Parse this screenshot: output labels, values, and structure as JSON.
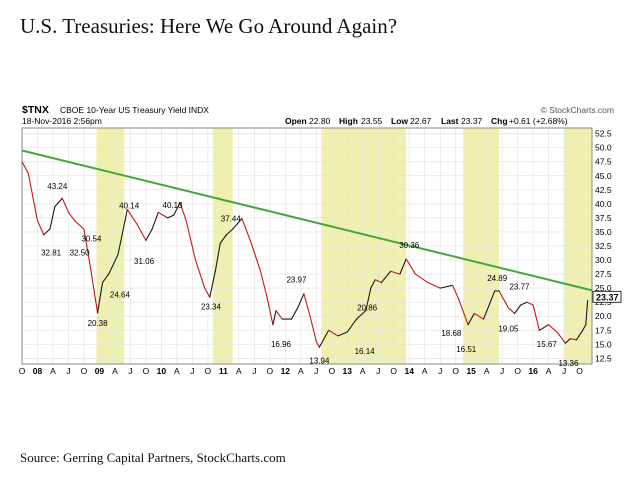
{
  "page": {
    "title": "U.S. Treasuries: Here We Go Around Again?",
    "source": "Source: Gerring Capital Partners, StockCharts.com"
  },
  "chart_data": {
    "type": "line",
    "symbol": "$TNX",
    "name": "CBOE 10-Year US Treasury Yield INDX",
    "date": "18-Nov-2016 2:56pm",
    "watermark": "© StockCharts.com",
    "quote": {
      "open_label": "Open",
      "open": "22.80",
      "high_label": "High",
      "high": "23.55",
      "low_label": "Low",
      "low": "22.67",
      "last_label": "Last",
      "last": "23.37",
      "chg_label": "Chg",
      "chg": "+0.61 (+2.68%)"
    },
    "last_value_label": "23.37",
    "xlim": [
      2007.75,
      2016.95
    ],
    "ylim": [
      11.5,
      53.5
    ],
    "y_ticks": [
      "12.5",
      "15.0",
      "17.5",
      "20.0",
      "22.5",
      "25.0",
      "27.5",
      "30.0",
      "32.5",
      "35.0",
      "37.5",
      "40.0",
      "42.5",
      "45.0",
      "47.5",
      "50.0",
      "52.5"
    ],
    "x_ticks": [
      {
        "label": "O",
        "x": 2007.75,
        "bold": false
      },
      {
        "label": "08",
        "x": 2008.0,
        "bold": true
      },
      {
        "label": "A",
        "x": 2008.25,
        "bold": false
      },
      {
        "label": "J",
        "x": 2008.5,
        "bold": false
      },
      {
        "label": "O",
        "x": 2008.75,
        "bold": false
      },
      {
        "label": "09",
        "x": 2009.0,
        "bold": true
      },
      {
        "label": "A",
        "x": 2009.25,
        "bold": false
      },
      {
        "label": "J",
        "x": 2009.5,
        "bold": false
      },
      {
        "label": "O",
        "x": 2009.75,
        "bold": false
      },
      {
        "label": "10",
        "x": 2010.0,
        "bold": true
      },
      {
        "label": "A",
        "x": 2010.25,
        "bold": false
      },
      {
        "label": "J",
        "x": 2010.5,
        "bold": false
      },
      {
        "label": "O",
        "x": 2010.75,
        "bold": false
      },
      {
        "label": "11",
        "x": 2011.0,
        "bold": true
      },
      {
        "label": "A",
        "x": 2011.25,
        "bold": false
      },
      {
        "label": "J",
        "x": 2011.5,
        "bold": false
      },
      {
        "label": "O",
        "x": 2011.75,
        "bold": false
      },
      {
        "label": "12",
        "x": 2012.0,
        "bold": true
      },
      {
        "label": "A",
        "x": 2012.25,
        "bold": false
      },
      {
        "label": "J",
        "x": 2012.5,
        "bold": false
      },
      {
        "label": "O",
        "x": 2012.75,
        "bold": false
      },
      {
        "label": "13",
        "x": 2013.0,
        "bold": true
      },
      {
        "label": "A",
        "x": 2013.25,
        "bold": false
      },
      {
        "label": "J",
        "x": 2013.5,
        "bold": false
      },
      {
        "label": "O",
        "x": 2013.75,
        "bold": false
      },
      {
        "label": "14",
        "x": 2014.0,
        "bold": true
      },
      {
        "label": "A",
        "x": 2014.25,
        "bold": false
      },
      {
        "label": "J",
        "x": 2014.5,
        "bold": false
      },
      {
        "label": "O",
        "x": 2014.75,
        "bold": false
      },
      {
        "label": "15",
        "x": 2015.0,
        "bold": true
      },
      {
        "label": "A",
        "x": 2015.25,
        "bold": false
      },
      {
        "label": "J",
        "x": 2015.5,
        "bold": false
      },
      {
        "label": "O",
        "x": 2015.75,
        "bold": false
      },
      {
        "label": "16",
        "x": 2016.0,
        "bold": true
      },
      {
        "label": "A",
        "x": 2016.25,
        "bold": false
      },
      {
        "label": "J",
        "x": 2016.5,
        "bold": false
      },
      {
        "label": "O",
        "x": 2016.75,
        "bold": false
      }
    ],
    "shaded_periods": [
      [
        2008.95,
        2009.4
      ],
      [
        2010.83,
        2011.15
      ],
      [
        2012.58,
        2013.95
      ],
      [
        2014.87,
        2015.45
      ],
      [
        2016.5,
        2016.95
      ]
    ],
    "trendline": {
      "x": [
        2007.75,
        2016.95
      ],
      "y": [
        49.5,
        24.6
      ]
    },
    "series": [
      {
        "x": [
          2007.75,
          2007.85,
          2008.0,
          2008.1,
          2008.2,
          2008.28,
          2008.4,
          2008.5,
          2008.6,
          2008.75,
          2008.85,
          2008.97,
          2009.05,
          2009.15,
          2009.3,
          2009.45,
          2009.6,
          2009.75,
          2009.85,
          2009.95,
          2010.1,
          2010.2,
          2010.3,
          2010.4,
          2010.55,
          2010.7,
          2010.78,
          2010.87,
          2010.95,
          2011.05,
          2011.15,
          2011.3,
          2011.45,
          2011.6,
          2011.7,
          2011.8,
          2011.85,
          2011.95,
          2012.1,
          2012.2,
          2012.3,
          2012.4,
          2012.5,
          2012.55,
          2012.7,
          2012.85,
          2013.0,
          2013.15,
          2013.3,
          2013.38,
          2013.45,
          2013.55,
          2013.7,
          2013.85,
          2013.95,
          2014.1,
          2014.3,
          2014.5,
          2014.7,
          2014.8,
          2014.95,
          2015.05,
          2015.2,
          2015.38,
          2015.45,
          2015.6,
          2015.7,
          2015.8,
          2015.9,
          2016.0,
          2016.1,
          2016.25,
          2016.4,
          2016.52,
          2016.6,
          2016.7,
          2016.8,
          2016.85,
          2016.88
        ],
        "y": [
          47.5,
          45.5,
          37.0,
          34.5,
          35.5,
          39.5,
          41.0,
          38.5,
          37.0,
          35.5,
          29.0,
          20.6,
          26.0,
          27.5,
          31.0,
          39.0,
          36.5,
          33.5,
          35.5,
          38.5,
          37.5,
          38.0,
          40.2,
          37.0,
          30.0,
          25.0,
          23.4,
          28.0,
          33.0,
          34.5,
          35.5,
          37.4,
          33.0,
          28.0,
          23.6,
          18.5,
          21.0,
          19.5,
          19.5,
          21.5,
          24.0,
          20.0,
          15.5,
          14.5,
          17.5,
          16.5,
          17.2,
          19.5,
          21.0,
          25.0,
          26.5,
          26.0,
          28.0,
          27.5,
          30.2,
          27.5,
          26.0,
          25.0,
          25.5,
          23.0,
          18.5,
          20.5,
          19.5,
          24.5,
          24.5,
          21.5,
          20.5,
          22.0,
          22.5,
          22.0,
          17.5,
          18.5,
          17.0,
          15.2,
          16.0,
          15.8,
          17.5,
          18.5,
          22.8
        ]
      }
    ],
    "annotations": [
      {
        "text": "43.24",
        "x": 2008.32,
        "y": 42.6
      },
      {
        "text": "32.81",
        "x": 2008.22,
        "y": 30.8
      },
      {
        "text": "32.50",
        "x": 2008.68,
        "y": 30.8
      },
      {
        "text": "30.54",
        "x": 2008.87,
        "y": 33.3
      },
      {
        "text": "40.14",
        "x": 2009.48,
        "y": 39.2
      },
      {
        "text": "40.13",
        "x": 2010.18,
        "y": 39.3
      },
      {
        "text": "37.44",
        "x": 2011.12,
        "y": 36.9
      },
      {
        "text": "31.06",
        "x": 2009.72,
        "y": 29.3
      },
      {
        "text": "24.64",
        "x": 2009.33,
        "y": 23.3
      },
      {
        "text": "20.38",
        "x": 2008.97,
        "y": 18.3
      },
      {
        "text": "23.34",
        "x": 2010.8,
        "y": 21.2
      },
      {
        "text": "23.97",
        "x": 2012.18,
        "y": 26.0
      },
      {
        "text": "16.96",
        "x": 2011.93,
        "y": 14.5
      },
      {
        "text": "13.94",
        "x": 2012.55,
        "y": 11.6
      },
      {
        "text": "20.86",
        "x": 2013.32,
        "y": 21.0
      },
      {
        "text": "16.14",
        "x": 2013.28,
        "y": 13.3
      },
      {
        "text": "30.36",
        "x": 2014.0,
        "y": 32.1
      },
      {
        "text": "18.68",
        "x": 2014.68,
        "y": 16.5
      },
      {
        "text": "16.51",
        "x": 2014.92,
        "y": 13.6
      },
      {
        "text": "24.89",
        "x": 2015.42,
        "y": 26.3
      },
      {
        "text": "23.77",
        "x": 2015.78,
        "y": 24.8
      },
      {
        "text": "19.05",
        "x": 2015.6,
        "y": 17.3
      },
      {
        "text": "15.67",
        "x": 2016.22,
        "y": 14.5
      },
      {
        "text": "13.36",
        "x": 2016.57,
        "y": 11.1
      }
    ],
    "colors": {
      "line": "#1a1a1a",
      "down": "#c21a1a",
      "trend": "#43a83b",
      "shade": "#f0f0b0",
      "grid": "#e4e4e4",
      "frame": "#888888"
    },
    "grid": true
  }
}
